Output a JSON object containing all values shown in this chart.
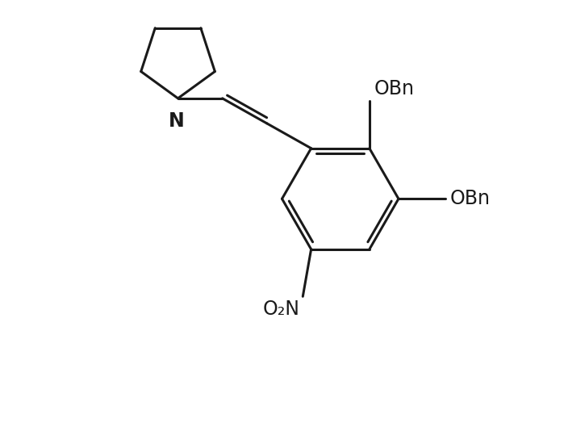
{
  "bg_color": "#ffffff",
  "line_color": "#1a1a1a",
  "line_width": 2.2,
  "font_size": 17,
  "figsize": [
    6.99,
    5.29
  ],
  "dpi": 100,
  "xlim": [
    0,
    10
  ],
  "ylim": [
    0,
    7.57
  ]
}
